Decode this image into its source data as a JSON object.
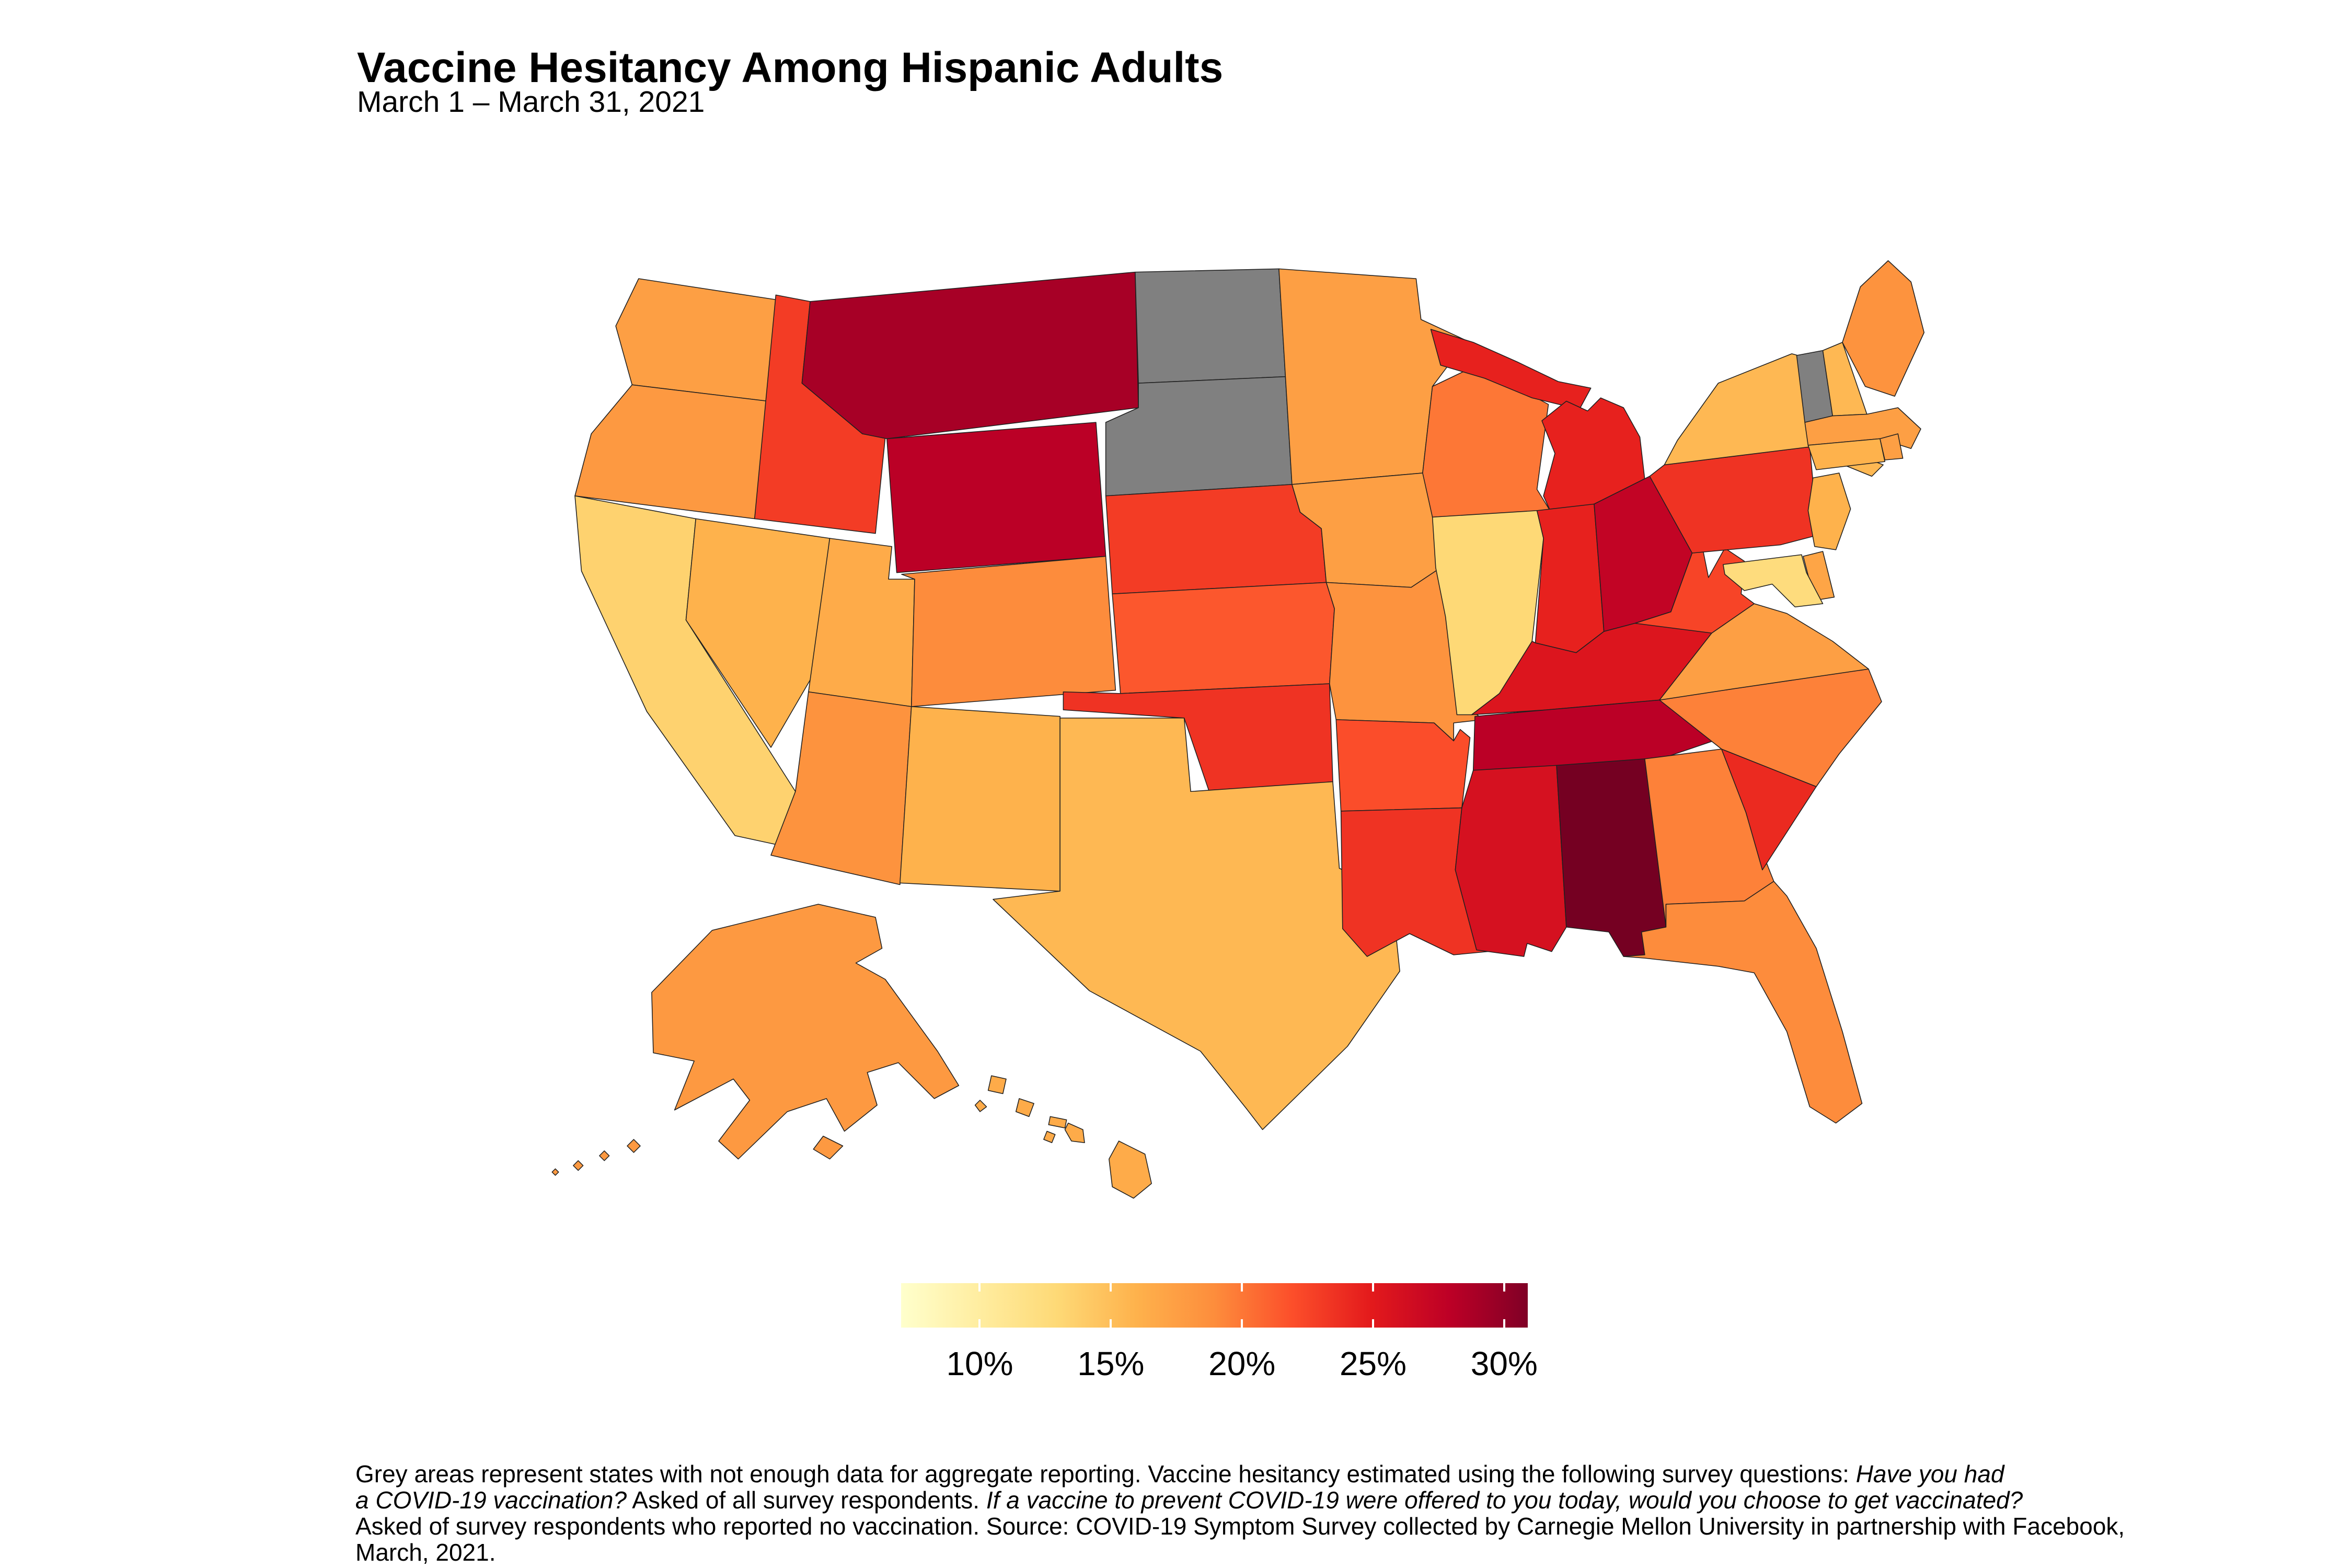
{
  "title": "Vaccine Hesitancy Among Hispanic Adults",
  "subtitle": "March 1 – March 31, 2021",
  "legend": {
    "ticks": [
      {
        "label": "10%",
        "value": 10
      },
      {
        "label": "15%",
        "value": 15
      },
      {
        "label": "20%",
        "value": 20
      },
      {
        "label": "25%",
        "value": 25
      },
      {
        "label": "30%",
        "value": 30
      }
    ]
  },
  "footnote": {
    "lines": [
      [
        {
          "text": "Grey areas represent states with not enough data for aggregate reporting. Vaccine hesitancy estimated using the following survey questions: ",
          "italic": false
        },
        {
          "text": "Have you had",
          "italic": true
        }
      ],
      [
        {
          "text": "a COVID-19 vaccination?",
          "italic": true
        },
        {
          "text": " Asked of all survey respondents. ",
          "italic": false
        },
        {
          "text": "If a vaccine to prevent COVID-19 were offered to you today, would you choose to get vaccinated?",
          "italic": true
        }
      ],
      [
        {
          "text": "Asked of survey respondents who reported no vaccination. Source: COVID-19 Symptom Survey collected by Carnegie Mellon University in partnership with Facebook,",
          "italic": false
        }
      ],
      [
        {
          "text": "March, 2021.",
          "italic": false
        }
      ]
    ]
  },
  "chart_data": {
    "type": "choropleth",
    "region": "United States (states, Albers projection with Alaska and Hawaii insets)",
    "metric": "Estimated vaccine hesitancy among Hispanic adults (%)",
    "colorscale": {
      "domain": [
        7.0,
        30.9
      ],
      "palette": [
        "#FFFFCC",
        "#FFEDA0",
        "#FED976",
        "#FEB24C",
        "#FD8D3C",
        "#FC4E2A",
        "#E31A1C",
        "#BD0026",
        "#800026"
      ],
      "overflow_color": "#3E0011",
      "no_data_color": "#808080",
      "ticks": [
        10,
        15,
        20,
        25,
        30
      ],
      "unit": "%"
    },
    "no_data_states": [
      "North Dakota",
      "South Dakota",
      "Vermont"
    ],
    "states": [
      {
        "code": "WA",
        "name": "Washington",
        "value": 17.5
      },
      {
        "code": "OR",
        "name": "Oregon",
        "value": 18
      },
      {
        "code": "CA",
        "name": "California",
        "value": 13.5
      },
      {
        "code": "NV",
        "name": "Nevada",
        "value": 16
      },
      {
        "code": "ID",
        "name": "Idaho",
        "value": 23
      },
      {
        "code": "MT",
        "name": "Montana",
        "value": 29
      },
      {
        "code": "WY",
        "name": "Wyoming",
        "value": 28
      },
      {
        "code": "UT",
        "name": "Utah",
        "value": 16.5
      },
      {
        "code": "CO",
        "name": "Colorado",
        "value": 19
      },
      {
        "code": "AZ",
        "name": "Arizona",
        "value": 18.5
      },
      {
        "code": "NM",
        "name": "New Mexico",
        "value": 16
      },
      {
        "code": "ND",
        "name": "North Dakota",
        "value": null
      },
      {
        "code": "SD",
        "name": "South Dakota",
        "value": null
      },
      {
        "code": "NE",
        "name": "Nebraska",
        "value": 23
      },
      {
        "code": "KS",
        "name": "Kansas",
        "value": 21.5
      },
      {
        "code": "OK",
        "name": "Oklahoma",
        "value": 23.5
      },
      {
        "code": "TX",
        "name": "Texas",
        "value": 15.5
      },
      {
        "code": "MN",
        "name": "Minnesota",
        "value": 17.5
      },
      {
        "code": "IA",
        "name": "Iowa",
        "value": 17.5
      },
      {
        "code": "MO",
        "name": "Missouri",
        "value": 18.5
      },
      {
        "code": "AR",
        "name": "Arkansas",
        "value": 22
      },
      {
        "code": "LA",
        "name": "Louisiana",
        "value": 23.5
      },
      {
        "code": "WI",
        "name": "Wisconsin",
        "value": 20
      },
      {
        "code": "MI",
        "name": "Michigan",
        "value": 24.5
      },
      {
        "code": "IL",
        "name": "Illinois",
        "value": 13
      },
      {
        "code": "IN",
        "name": "Indiana",
        "value": 24.5
      },
      {
        "code": "OH",
        "name": "Ohio",
        "value": 27.5
      },
      {
        "code": "KY",
        "name": "Kentucky",
        "value": 25.5
      },
      {
        "code": "TN",
        "name": "Tennessee",
        "value": 28
      },
      {
        "code": "MS",
        "name": "Mississippi",
        "value": 26
      },
      {
        "code": "AL",
        "name": "Alabama",
        "value": 31.5
      },
      {
        "code": "GA",
        "name": "Georgia",
        "value": 19.5
      },
      {
        "code": "FL",
        "name": "Florida",
        "value": 19
      },
      {
        "code": "SC",
        "name": "South Carolina",
        "value": 24
      },
      {
        "code": "NC",
        "name": "North Carolina",
        "value": 19.5
      },
      {
        "code": "VA",
        "name": "Virginia",
        "value": 17.5
      },
      {
        "code": "WV",
        "name": "West Virginia",
        "value": 22.5
      },
      {
        "code": "PA",
        "name": "Pennsylvania",
        "value": 23.5
      },
      {
        "code": "NY",
        "name": "New York",
        "value": 15.5
      },
      {
        "code": "VT",
        "name": "Vermont",
        "value": null
      },
      {
        "code": "NH",
        "name": "New Hampshire",
        "value": 15.5
      },
      {
        "code": "ME",
        "name": "Maine",
        "value": 18.5
      },
      {
        "code": "MA",
        "name": "Massachusetts",
        "value": 17.5
      },
      {
        "code": "RI",
        "name": "Rhode Island",
        "value": 17.5
      },
      {
        "code": "CT",
        "name": "Connecticut",
        "value": 16
      },
      {
        "code": "NJ",
        "name": "New Jersey",
        "value": 16
      },
      {
        "code": "DE",
        "name": "Delaware",
        "value": 17
      },
      {
        "code": "MD",
        "name": "Maryland",
        "value": 12.5
      },
      {
        "code": "AK",
        "name": "Alaska",
        "value": 18
      },
      {
        "code": "HI",
        "name": "Hawaii",
        "value": 16.5
      }
    ]
  }
}
